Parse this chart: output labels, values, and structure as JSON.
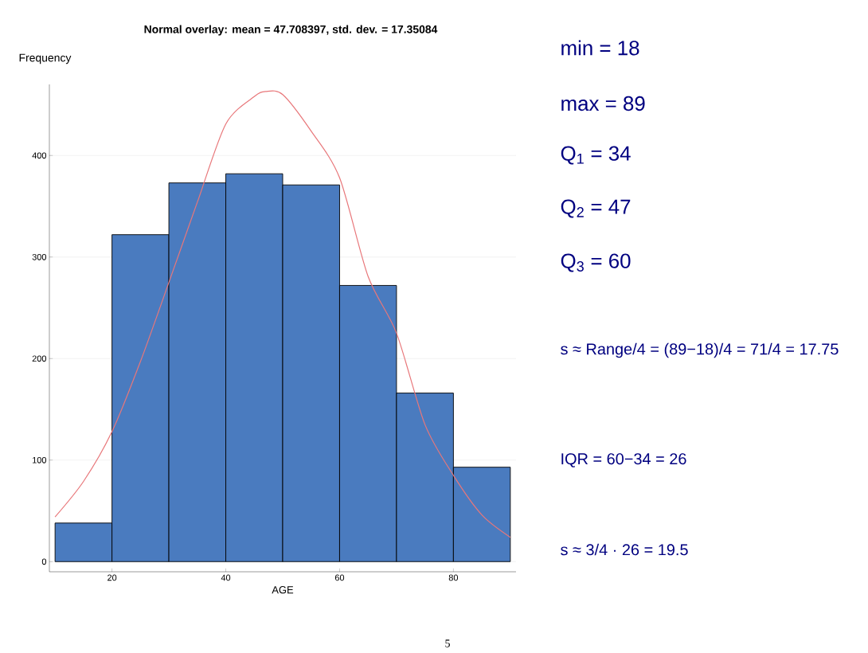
{
  "chart_data": {
    "type": "histogram",
    "title": "Normal overlay: mean = 47.708397, std. dev. = 17.35084",
    "xlabel": "AGE",
    "ylabel": "Frequency",
    "bins": [
      10,
      20,
      30,
      40,
      50,
      60,
      70,
      80,
      90
    ],
    "values": [
      38,
      322,
      373,
      382,
      371,
      272,
      166,
      93
    ],
    "color": "#4a7bbf",
    "series": [
      {
        "type": "line",
        "color": "#e8777a",
        "x": [
          10,
          15,
          20,
          25,
          30,
          35,
          40,
          45,
          47,
          50,
          55,
          60,
          65,
          70,
          75,
          80,
          85,
          90
        ],
        "values": [
          44,
          79,
          128,
          197,
          275,
          354,
          431,
          458,
          463,
          460,
          424,
          378,
          281,
          225,
          135,
          85,
          46,
          24
        ]
      }
    ],
    "xlim": [
      9,
      91
    ],
    "ylim": [
      -10,
      470
    ],
    "xticks": [
      20,
      40,
      60,
      80
    ],
    "yticks": [
      0,
      100,
      200,
      300,
      400
    ],
    "grid": "y",
    "annotations": [
      "min = 18",
      "max = 89",
      "Q$_{1}$ = 34",
      "Q$_{2}$ = 47",
      "Q$_{3}$ = 60",
      "s ≈ Range/4 = (89−18)/4 = 71/4 = 17.75",
      "IQR = 60−34 = 26",
      "s ≈ 3/4 · 26 = 19.5",
      "5"
    ]
  }
}
